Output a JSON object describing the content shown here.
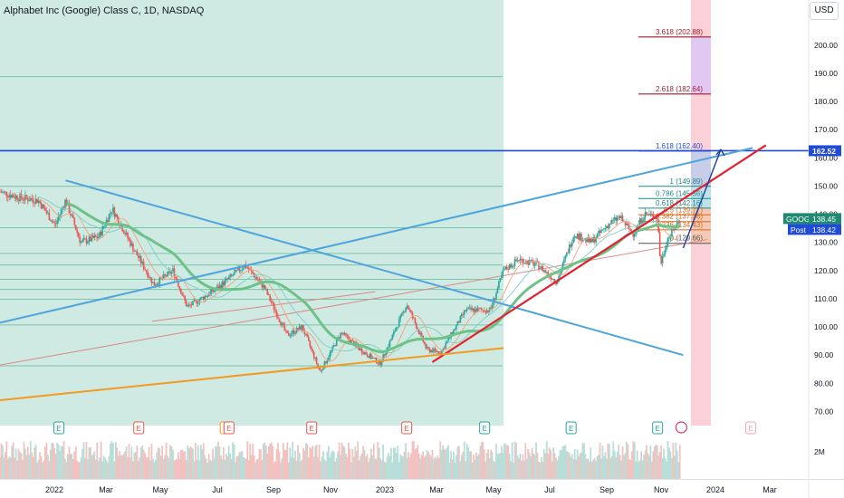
{
  "title": "Alphabet Inc (Google) Class C, 1D, NASDAQ",
  "currency_button": "USD",
  "colors": {
    "shade": "#cfe9e3",
    "fib_gray": "#aeb4c2",
    "pink_band": "#fbd0d6",
    "violet_band": "#e0c8f3",
    "blue_line": "#4ea5de",
    "dark_blue": "#1f4bd6",
    "red": "#e3222f",
    "orange": "#f39a25",
    "green_ma": "#6cc287",
    "rust_channel": "#d98a87",
    "candle_up": "#26a69a",
    "candle_down": "#ef5350",
    "arrow": "#1d3aa0"
  },
  "chart_data": {
    "type": "candlestick",
    "symbol": "GOOG",
    "ylim": [
      65,
      216
    ],
    "yticks": [
      70,
      80,
      90,
      100,
      110,
      120,
      130,
      140,
      150,
      160,
      170,
      180,
      190,
      200
    ],
    "ytick_labels": [
      "70.00",
      "80.00",
      "90.00",
      "100.00",
      "110.00",
      "120.00",
      "130.00",
      "140.00",
      "150.00",
      "160.00",
      "170.00",
      "180.00",
      "190.00",
      "200.00"
    ],
    "x_labels": [
      "2022",
      "Mar",
      "May",
      "Jul",
      "Sep",
      "Nov",
      "2023",
      "Mar",
      "May",
      "Jul",
      "Sep",
      "Nov",
      "2024",
      "Mar"
    ],
    "price_path": [
      [
        "2021-12-01",
        148
      ],
      [
        "2021-12-20",
        146
      ],
      [
        "2022-01-10",
        145
      ],
      [
        "2022-01-28",
        136
      ],
      [
        "2022-02-08",
        145
      ],
      [
        "2022-02-24",
        130
      ],
      [
        "2022-03-15",
        132
      ],
      [
        "2022-03-29",
        142
      ],
      [
        "2022-04-20",
        128
      ],
      [
        "2022-05-12",
        115
      ],
      [
        "2022-06-01",
        120
      ],
      [
        "2022-06-16",
        107
      ],
      [
        "2022-07-15",
        113
      ],
      [
        "2022-08-16",
        122
      ],
      [
        "2022-09-05",
        114
      ],
      [
        "2022-09-29",
        97
      ],
      [
        "2022-10-15",
        100
      ],
      [
        "2022-11-03",
        84
      ],
      [
        "2022-11-25",
        98
      ],
      [
        "2022-12-15",
        92
      ],
      [
        "2023-01-05",
        87
      ],
      [
        "2023-02-02",
        108
      ],
      [
        "2023-02-23",
        92
      ],
      [
        "2023-03-10",
        91
      ],
      [
        "2023-04-05",
        106
      ],
      [
        "2023-05-01",
        106
      ],
      [
        "2023-05-15",
        120
      ],
      [
        "2023-05-31",
        124
      ],
      [
        "2023-06-20",
        122
      ],
      [
        "2023-07-10",
        116
      ],
      [
        "2023-07-28",
        133
      ],
      [
        "2023-08-15",
        130
      ],
      [
        "2023-09-01",
        136
      ],
      [
        "2023-09-14",
        139
      ],
      [
        "2023-09-28",
        133
      ],
      [
        "2023-10-10",
        140
      ],
      [
        "2023-10-24",
        139
      ],
      [
        "2023-10-27",
        122
      ],
      [
        "2023-11-03",
        131
      ],
      [
        "2023-11-17",
        138.45
      ]
    ],
    "last_price": "138.45",
    "post_price": "138.42",
    "price_tag_label": "GOOG",
    "post_tag_label": "Post",
    "horizontal_levels": [
      188.8,
      149.9,
      135.2,
      126.1,
      122.0,
      116.9,
      113.3,
      109.8,
      100.7,
      86.2
    ],
    "blue_level": {
      "value": 162.52,
      "label": "162.52"
    },
    "fib_levels": [
      {
        "ratio": "3.618",
        "value": 202.88,
        "label": "3.618 (202.88)"
      },
      {
        "ratio": "2.618",
        "value": 182.64,
        "label": "2.618 (182.64)"
      },
      {
        "ratio": "1.618",
        "value": 162.4,
        "label": "1.618 (162.40)"
      },
      {
        "ratio": "1",
        "value": 149.89,
        "label": "1 (149.89)"
      },
      {
        "ratio": "0.786",
        "value": 145.56,
        "label": "0.786 (145.56)"
      },
      {
        "ratio": "0.618",
        "value": 142.16,
        "label": "0.618 (142.16)"
      },
      {
        "ratio": "0.5",
        "value": 139.77,
        "label": "0.5 (139.77)"
      },
      {
        "ratio": "0.382",
        "value": 137.38,
        "label": "0.382 (137.38)"
      },
      {
        "ratio": "0.236",
        "value": 134.43,
        "label": "0.236 (134.43)"
      },
      {
        "ratio": "0",
        "value": 129.66,
        "label": "0 (129.66)"
      }
    ],
    "trendlines": [
      {
        "name": "ascending-blue",
        "from": [
          "2021-12-01",
          101.5
        ],
        "to": [
          "2024-02-01",
          163.5
        ]
      },
      {
        "name": "descending-blue",
        "from": [
          "2022-02-08",
          152
        ],
        "to": [
          "2023-11-20",
          90
        ]
      },
      {
        "name": "rising-red",
        "from": [
          "2023-03-01",
          87.5
        ],
        "to": [
          "2024-02-15",
          164.5
        ]
      },
      {
        "name": "support-orange",
        "from": [
          "2021-12-01",
          74
        ],
        "to": [
          "2023-05-15",
          92.5
        ]
      },
      {
        "name": "channel-lower",
        "from": [
          "2021-12-01",
          86.5
        ],
        "to": [
          "2023-12-15",
          131
        ]
      },
      {
        "name": "channel-upper",
        "from": [
          "2022-05-10",
          102
        ],
        "to": [
          "2022-12-31",
          112.5
        ]
      }
    ],
    "earnings_markers": [
      {
        "date": "2022-02-01",
        "label": "E",
        "state": "beat"
      },
      {
        "date": "2022-04-26",
        "label": "E",
        "state": "miss"
      },
      {
        "date": "2022-07-26",
        "label": "S",
        "state": "split"
      },
      {
        "date": "2022-07-30",
        "label": "E",
        "state": "miss"
      },
      {
        "date": "2022-10-25",
        "label": "E",
        "state": "miss"
      },
      {
        "date": "2023-02-02",
        "label": "E",
        "state": "miss"
      },
      {
        "date": "2023-04-25",
        "label": "E",
        "state": "beat"
      },
      {
        "date": "2023-07-25",
        "label": "E",
        "state": "beat"
      },
      {
        "date": "2023-10-24",
        "label": "E",
        "state": "beat"
      },
      {
        "date": "2023-11-18",
        "label": "",
        "state": "event"
      },
      {
        "date": "2024-01-30",
        "label": "E",
        "state": "upcoming"
      }
    ],
    "volume_axis_label": "2M",
    "projection": {
      "from": [
        "2023-11-20",
        128
      ],
      "to": [
        "2023-12-01",
        163
      ]
    }
  }
}
